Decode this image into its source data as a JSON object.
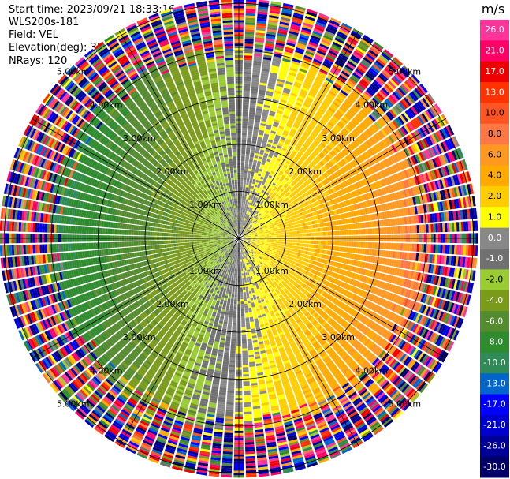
{
  "header": {
    "start_time": "Start time: 2023/09/21 18:33:16",
    "instrument": "WLS200s-181",
    "field": "Field: VEL",
    "elevation": "Elevation(deg): 35.30",
    "nrays": "NRays: 120"
  },
  "chart_data": {
    "type": "heatmap",
    "projection": "polar-ppi",
    "field": "VEL",
    "nrays": 120,
    "range_rings_km": [
      1.0,
      2.0,
      3.0,
      4.0,
      5.0
    ],
    "range_ring_labels": [
      "1.00km",
      "2.00km",
      "3.00km",
      "4.00km",
      "5.00km"
    ],
    "spoke_angles_deg": [
      0,
      30,
      60,
      90,
      120,
      150,
      180,
      210,
      240,
      270,
      300,
      330
    ],
    "colorbar": {
      "unit": "m/s",
      "tick_labels": [
        "26.0",
        "21.0",
        "17.0",
        "13.0",
        "10.0",
        "8.0",
        "6.0",
        "4.0",
        "2.0",
        "1.0",
        "0.0",
        "-1.0",
        "-2.0",
        "-4.0",
        "-6.0",
        "-8.0",
        "-10.0",
        "-13.0",
        "-17.0",
        "-21.0",
        "-26.0",
        "-30.0"
      ],
      "bins": [
        {
          "min": 26,
          "max": 30,
          "color": "#ff3399"
        },
        {
          "min": 21,
          "max": 26,
          "color": "#ff0066"
        },
        {
          "min": 17,
          "max": 21,
          "color": "#ee0000"
        },
        {
          "min": 13,
          "max": 17,
          "color": "#ff3300"
        },
        {
          "min": 10,
          "max": 13,
          "color": "#ff5522"
        },
        {
          "min": 8,
          "max": 10,
          "color": "#ff7744"
        },
        {
          "min": 6,
          "max": 8,
          "color": "#ff9922"
        },
        {
          "min": 4,
          "max": 6,
          "color": "#ffaa00"
        },
        {
          "min": 2,
          "max": 4,
          "color": "#ffcc00"
        },
        {
          "min": 1,
          "max": 2,
          "color": "#ffff00"
        },
        {
          "min": 0,
          "max": 1,
          "color": "#888888"
        },
        {
          "min": -1,
          "max": 0,
          "color": "#707070"
        },
        {
          "min": -2,
          "max": -1,
          "color": "#99cc33"
        },
        {
          "min": -4,
          "max": -2,
          "color": "#7a9a1a"
        },
        {
          "min": -6,
          "max": -4,
          "color": "#558b2f"
        },
        {
          "min": -8,
          "max": -6,
          "color": "#2e8b2e"
        },
        {
          "min": -10,
          "max": -8,
          "color": "#2e8b57"
        },
        {
          "min": -13,
          "max": -10,
          "color": "#0066cc"
        },
        {
          "min": -17,
          "max": -13,
          "color": "#0000ff"
        },
        {
          "min": -21,
          "max": -17,
          "color": "#0000cc"
        },
        {
          "min": -26,
          "max": -21,
          "color": "#000099"
        },
        {
          "min": -30,
          "max": -26,
          "color": "#000066"
        }
      ]
    }
  }
}
